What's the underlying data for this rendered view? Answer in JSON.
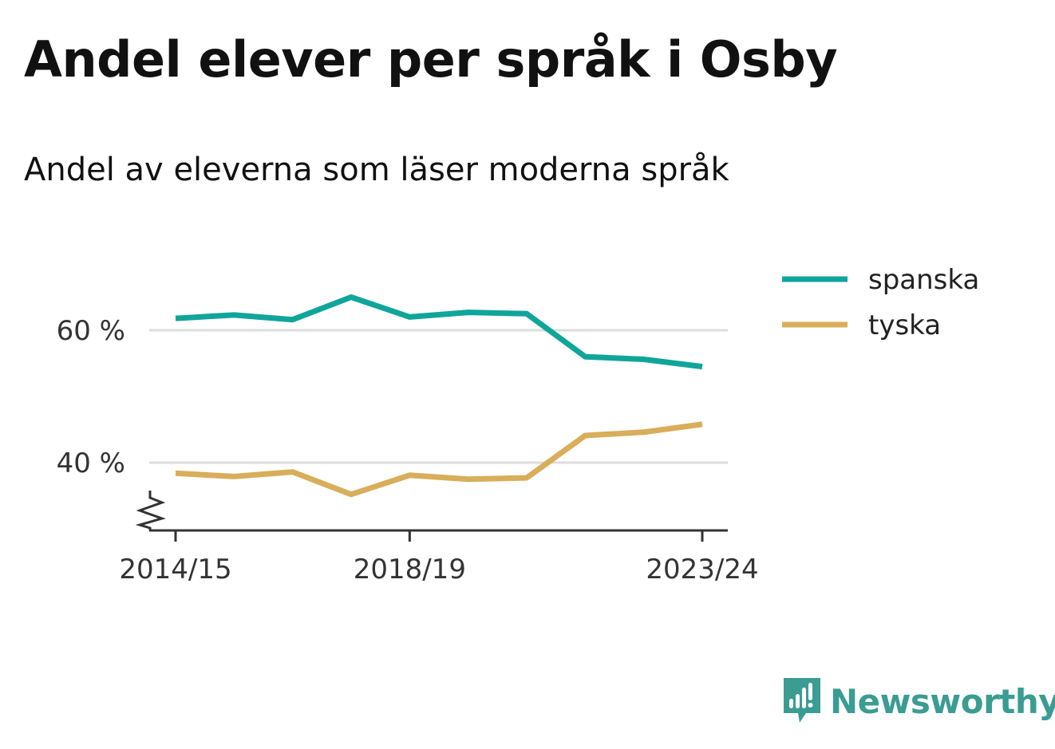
{
  "title": "Andel elever per språk i Osby",
  "subtitle": "Andel av eleverna som läser moderna språk",
  "logo": {
    "text": "Newsworthy",
    "icon": "newsworthy-logo-icon",
    "color": "#3a9c93"
  },
  "chart_data": {
    "type": "line",
    "x": [
      "2014/15",
      "2015/16",
      "2016/17",
      "2017/18",
      "2018/19",
      "2019/20",
      "2020/21",
      "2021/22",
      "2022/23",
      "2023/24"
    ],
    "x_tick_labels": [
      "2014/15",
      "2018/19",
      "2023/24"
    ],
    "series": [
      {
        "name": "spanska",
        "color": "#10a59a",
        "values": [
          61.8,
          62.3,
          61.6,
          65.0,
          62.0,
          62.7,
          62.5,
          56.0,
          55.6,
          54.5
        ]
      },
      {
        "name": "tyska",
        "color": "#d8ae5b",
        "values": [
          38.4,
          37.9,
          38.6,
          35.2,
          38.1,
          37.5,
          37.7,
          44.1,
          44.6,
          45.8
        ]
      }
    ],
    "y_ticks": [
      40,
      60
    ],
    "y_tick_labels": [
      "40 %",
      "60 %"
    ],
    "ylim": [
      30,
      70
    ],
    "y_axis_break": true,
    "grid": true,
    "legend": "top-right"
  }
}
